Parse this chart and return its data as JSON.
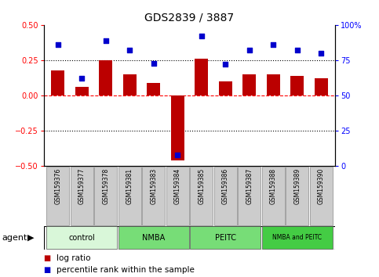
{
  "title": "GDS2839 / 3887",
  "samples": [
    "GSM159376",
    "GSM159377",
    "GSM159378",
    "GSM159381",
    "GSM159383",
    "GSM159384",
    "GSM159385",
    "GSM159386",
    "GSM159387",
    "GSM159388",
    "GSM159389",
    "GSM159390"
  ],
  "log_ratio": [
    0.18,
    0.06,
    0.25,
    0.15,
    0.09,
    -0.46,
    0.26,
    0.1,
    0.15,
    0.15,
    0.14,
    0.12
  ],
  "percentile_rank": [
    86,
    62,
    89,
    82,
    73,
    8,
    92,
    72,
    82,
    86,
    82,
    80
  ],
  "bar_color": "#bb0000",
  "dot_color": "#0000cc",
  "ylim_left": [
    -0.5,
    0.5
  ],
  "ylim_right": [
    0,
    100
  ],
  "yticks_left": [
    -0.5,
    -0.25,
    0,
    0.25,
    0.5
  ],
  "yticks_right": [
    0,
    25,
    50,
    75,
    100
  ],
  "ytick_labels_right": [
    "0",
    "25",
    "50",
    "75",
    "100%"
  ],
  "groups": [
    {
      "label": "control",
      "start": 0,
      "end": 3,
      "color": "#d9f7d9"
    },
    {
      "label": "NMBA",
      "start": 3,
      "end": 6,
      "color": "#77dd77"
    },
    {
      "label": "PEITC",
      "start": 6,
      "end": 9,
      "color": "#77dd77"
    },
    {
      "label": "NMBA and PEITC",
      "start": 9,
      "end": 12,
      "color": "#44cc44"
    }
  ],
  "agent_label": "agent",
  "legend_bar_label": "log ratio",
  "legend_dot_label": "percentile rank within the sample",
  "background_plot": "#ffffff",
  "sample_cell_color": "#cccccc",
  "title_fontsize": 10,
  "axis_fontsize": 7,
  "sample_fontsize": 5.5,
  "group_fontsize": 7,
  "legend_fontsize": 7.5
}
